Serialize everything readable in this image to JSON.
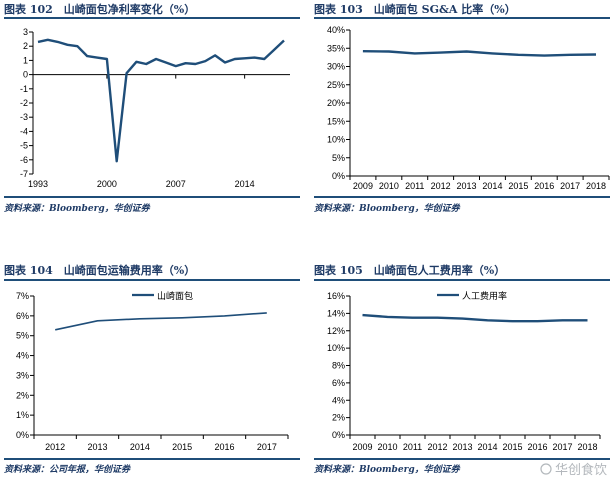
{
  "colors": {
    "line": "#1f4e79",
    "rule": "#1f4e79",
    "text": "#1f3b66"
  },
  "watermark": "华创食饮",
  "chart_data": [
    {
      "type": "line",
      "title": "图表 102　山崎面包净利率变化（%）",
      "source": "资料来源：Bloomberg，华创证券",
      "x_axis": "numeric",
      "x": [
        1993,
        1994,
        1995,
        1996,
        1997,
        1998,
        1999,
        2000,
        2001,
        2002,
        2003,
        2004,
        2005,
        2006,
        2007,
        2008,
        2009,
        2010,
        2011,
        2012,
        2013,
        2014,
        2015,
        2016,
        2017,
        2018
      ],
      "values": [
        2.3,
        2.45,
        2.3,
        2.1,
        2.0,
        1.3,
        1.2,
        1.1,
        -6.1,
        0.1,
        0.9,
        0.75,
        1.1,
        0.85,
        0.6,
        0.8,
        0.75,
        0.95,
        1.35,
        0.85,
        1.1,
        1.15,
        1.2,
        1.1,
        1.75,
        2.4
      ],
      "xticks": [
        1993,
        2000,
        2007,
        2014
      ],
      "xlim": [
        1993,
        2018
      ],
      "ylim": [
        -7,
        3
      ],
      "yticks": [
        "3",
        "2",
        "1",
        "0",
        "-1",
        "-2",
        "-3",
        "-4",
        "-5",
        "-6",
        "-7"
      ],
      "grid": false,
      "legend": null
    },
    {
      "type": "line",
      "title": "图表 103　山崎面包 SG&A 比率（%）",
      "source": "资料来源：Bloomberg，华创证券",
      "x_axis": "category",
      "categories": [
        "2009",
        "2010",
        "2011",
        "2012",
        "2013",
        "2014",
        "2015",
        "2016",
        "2017",
        "2018"
      ],
      "values": [
        34.2,
        34.1,
        33.6,
        33.8,
        34.1,
        33.6,
        33.2,
        33.0,
        33.2,
        33.3
      ],
      "ylim": [
        0,
        40
      ],
      "yticks": [
        "40%",
        "35%",
        "30%",
        "25%",
        "20%",
        "15%",
        "10%",
        "5%",
        "0%"
      ],
      "grid": false,
      "legend": null
    },
    {
      "type": "line",
      "title": "图表 104　山崎面包运输费用率（%）",
      "source": "资料来源：公司年报，华创证券",
      "x_axis": "category",
      "categories": [
        "2012",
        "2013",
        "2014",
        "2015",
        "2016",
        "2017"
      ],
      "series": [
        {
          "name": "山崎面包",
          "values": [
            5.3,
            5.75,
            5.85,
            5.9,
            6.0,
            6.15
          ]
        }
      ],
      "ylim": [
        0,
        7
      ],
      "yticks": [
        "7%",
        "6%",
        "5%",
        "4%",
        "3%",
        "2%",
        "1%",
        "0%"
      ],
      "grid": false,
      "legend": "top"
    },
    {
      "type": "line",
      "title": "图表 105　山崎面包人工费用率（%）",
      "source": "资料来源：Bloomberg，华创证券",
      "x_axis": "category",
      "categories": [
        "2009",
        "2010",
        "2011",
        "2012",
        "2013",
        "2014",
        "2015",
        "2016",
        "2017",
        "2018"
      ],
      "series": [
        {
          "name": "人工费用率",
          "values": [
            13.8,
            13.6,
            13.5,
            13.5,
            13.4,
            13.2,
            13.1,
            13.1,
            13.2,
            13.2
          ]
        }
      ],
      "ylim": [
        0,
        16
      ],
      "yticks": [
        "16%",
        "14%",
        "12%",
        "10%",
        "8%",
        "6%",
        "4%",
        "2%",
        "0%"
      ],
      "grid": false,
      "legend": "top"
    }
  ]
}
